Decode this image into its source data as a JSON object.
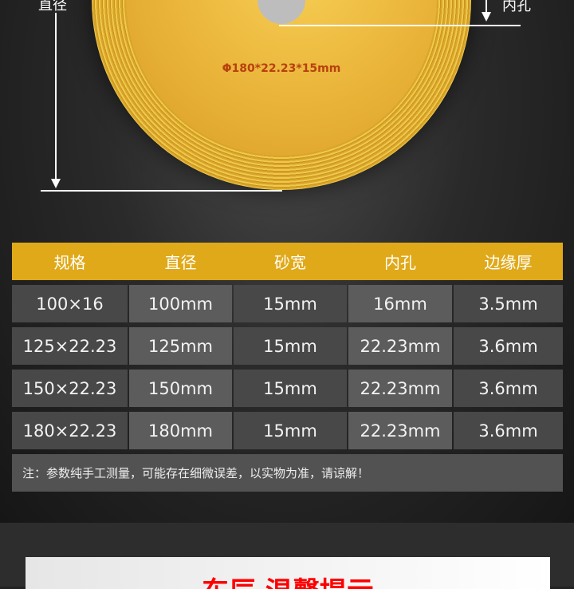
{
  "product": {
    "spec_marking": "Φ180*22.23*15mm",
    "label_diameter": "直径",
    "label_bore": "内孔"
  },
  "table": {
    "headers": [
      "规格",
      "直径",
      "砂宽",
      "内孔",
      "边缘厚"
    ],
    "rows": [
      [
        "100×16",
        "100mm",
        "15mm",
        "16mm",
        "3.5mm"
      ],
      [
        "125×22.23",
        "125mm",
        "15mm",
        "22.23mm",
        "3.6mm"
      ],
      [
        "150×22.23",
        "150mm",
        "15mm",
        "22.23mm",
        "3.6mm"
      ],
      [
        "180×22.23",
        "180mm",
        "15mm",
        "22.23mm",
        "3.6mm"
      ]
    ],
    "note": "注：参数纯手工测量，可能存在细微误差，以实物为准，请谅解！"
  },
  "banner": {
    "title": "东辰 温馨提示"
  },
  "colors": {
    "header": "#e0a919",
    "accent_red": "#ff0000"
  }
}
